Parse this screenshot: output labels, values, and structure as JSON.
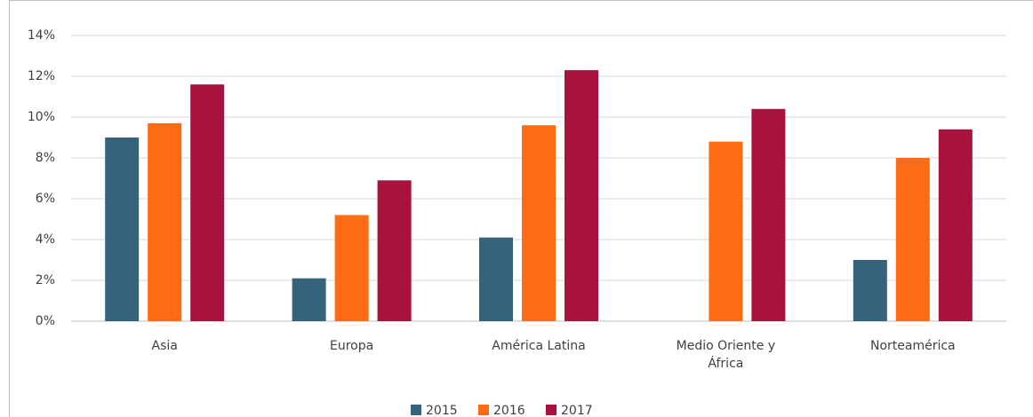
{
  "chart_data": {
    "type": "bar",
    "categories": [
      "Asia",
      "Europa",
      "América Latina",
      "Medio Oriente y África",
      "Norteamérica"
    ],
    "series": [
      {
        "name": "2015",
        "color": "#35637c",
        "values": [
          9.0,
          2.1,
          4.1,
          null,
          3.0
        ]
      },
      {
        "name": "2016",
        "color": "#ff6b12",
        "values": [
          9.7,
          5.2,
          9.6,
          8.8,
          8.0
        ]
      },
      {
        "name": "2017",
        "color": "#a8123d",
        "values": [
          11.6,
          6.9,
          12.3,
          10.4,
          9.4
        ]
      }
    ],
    "ylim": [
      0,
      14
    ],
    "yticks": [
      {
        "value": 0,
        "label": "0%"
      },
      {
        "value": 2,
        "label": "2%"
      },
      {
        "value": 4,
        "label": "4%"
      },
      {
        "value": 6,
        "label": "6%"
      },
      {
        "value": 8,
        "label": "8%"
      },
      {
        "value": 10,
        "label": "10%"
      },
      {
        "value": 12,
        "label": "12%"
      },
      {
        "value": 14,
        "label": "14%"
      }
    ],
    "grid": true,
    "legend": "bottom"
  }
}
